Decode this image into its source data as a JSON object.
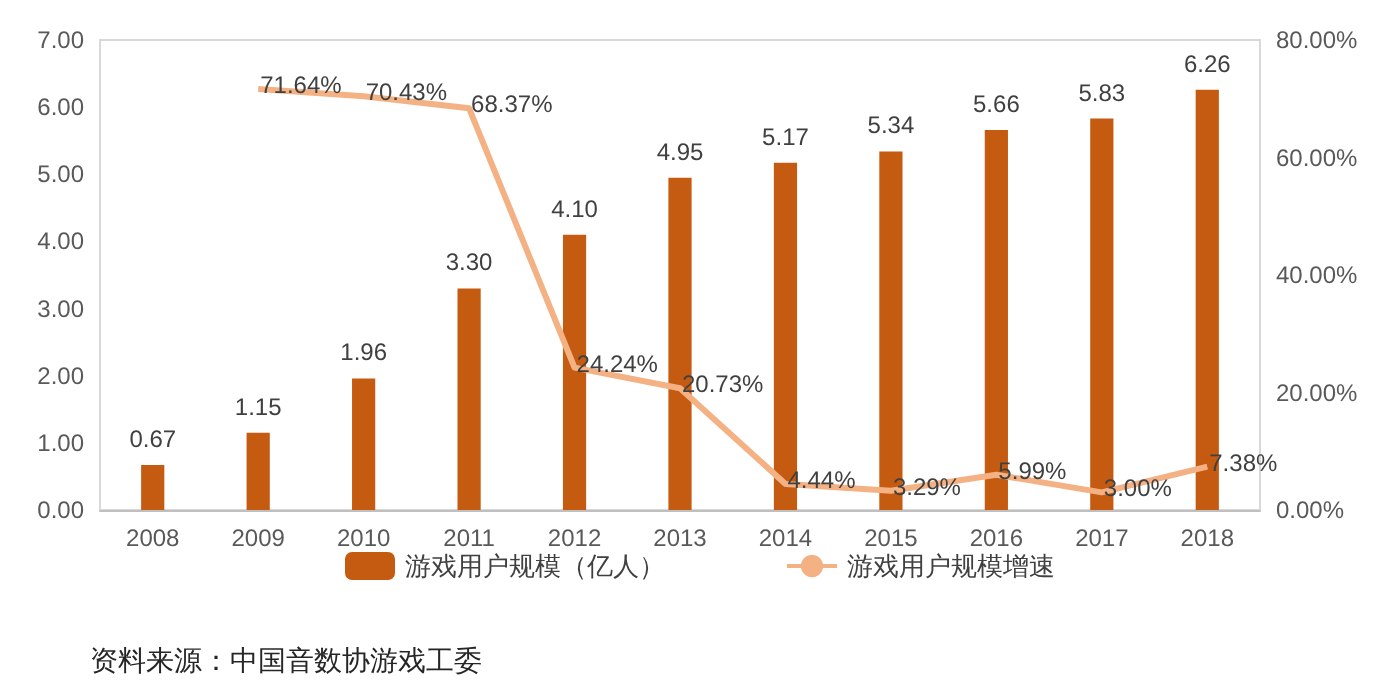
{
  "chart_data": {
    "type": "bar",
    "categories": [
      "2008",
      "2009",
      "2010",
      "2011",
      "2012",
      "2013",
      "2014",
      "2015",
      "2016",
      "2017",
      "2018"
    ],
    "series": [
      {
        "name": "游戏用户规模（亿人）",
        "color": "#c55a11",
        "values": [
          0.67,
          1.15,
          1.96,
          3.3,
          4.1,
          4.95,
          5.17,
          5.34,
          5.66,
          5.83,
          6.26
        ],
        "value_labels": [
          "0.67",
          "1.15",
          "1.96",
          "3.30",
          "4.10",
          "4.95",
          "5.17",
          "5.34",
          "5.66",
          "5.83",
          "6.26"
        ]
      },
      {
        "name": "游戏用户规模增速",
        "type": "line",
        "axis": "y2",
        "color": "#f4b183",
        "marker": "none",
        "values": [
          null,
          71.64,
          70.43,
          68.37,
          24.24,
          20.73,
          4.44,
          3.29,
          5.99,
          3.0,
          7.38
        ],
        "value_labels": [
          null,
          "71.64%",
          "70.43%",
          "68.37%",
          "24.24%",
          "20.73%",
          "4.44%",
          "3.29%",
          "5.99%",
          "3.00%",
          "7.38%"
        ]
      }
    ],
    "ylim": [
      0,
      7
    ],
    "yticks": [
      {
        "value": 0,
        "label": "0.00"
      },
      {
        "value": 1,
        "label": "1.00"
      },
      {
        "value": 2,
        "label": "2.00"
      },
      {
        "value": 3,
        "label": "3.00"
      },
      {
        "value": 4,
        "label": "4.00"
      },
      {
        "value": 5,
        "label": "5.00"
      },
      {
        "value": 6,
        "label": "6.00"
      },
      {
        "value": 7,
        "label": "7.00"
      }
    ],
    "y2lim": [
      0,
      80
    ],
    "y2ticks": [
      {
        "value": 0,
        "label": "0.00%"
      },
      {
        "value": 20,
        "label": "20.00%"
      },
      {
        "value": 40,
        "label": "40.00%"
      },
      {
        "value": 60,
        "label": "60.00%"
      },
      {
        "value": 80,
        "label": "80.00%"
      }
    ],
    "legend": "bottom",
    "annotations": [
      "资料来源：中国音数协游戏工委"
    ]
  }
}
